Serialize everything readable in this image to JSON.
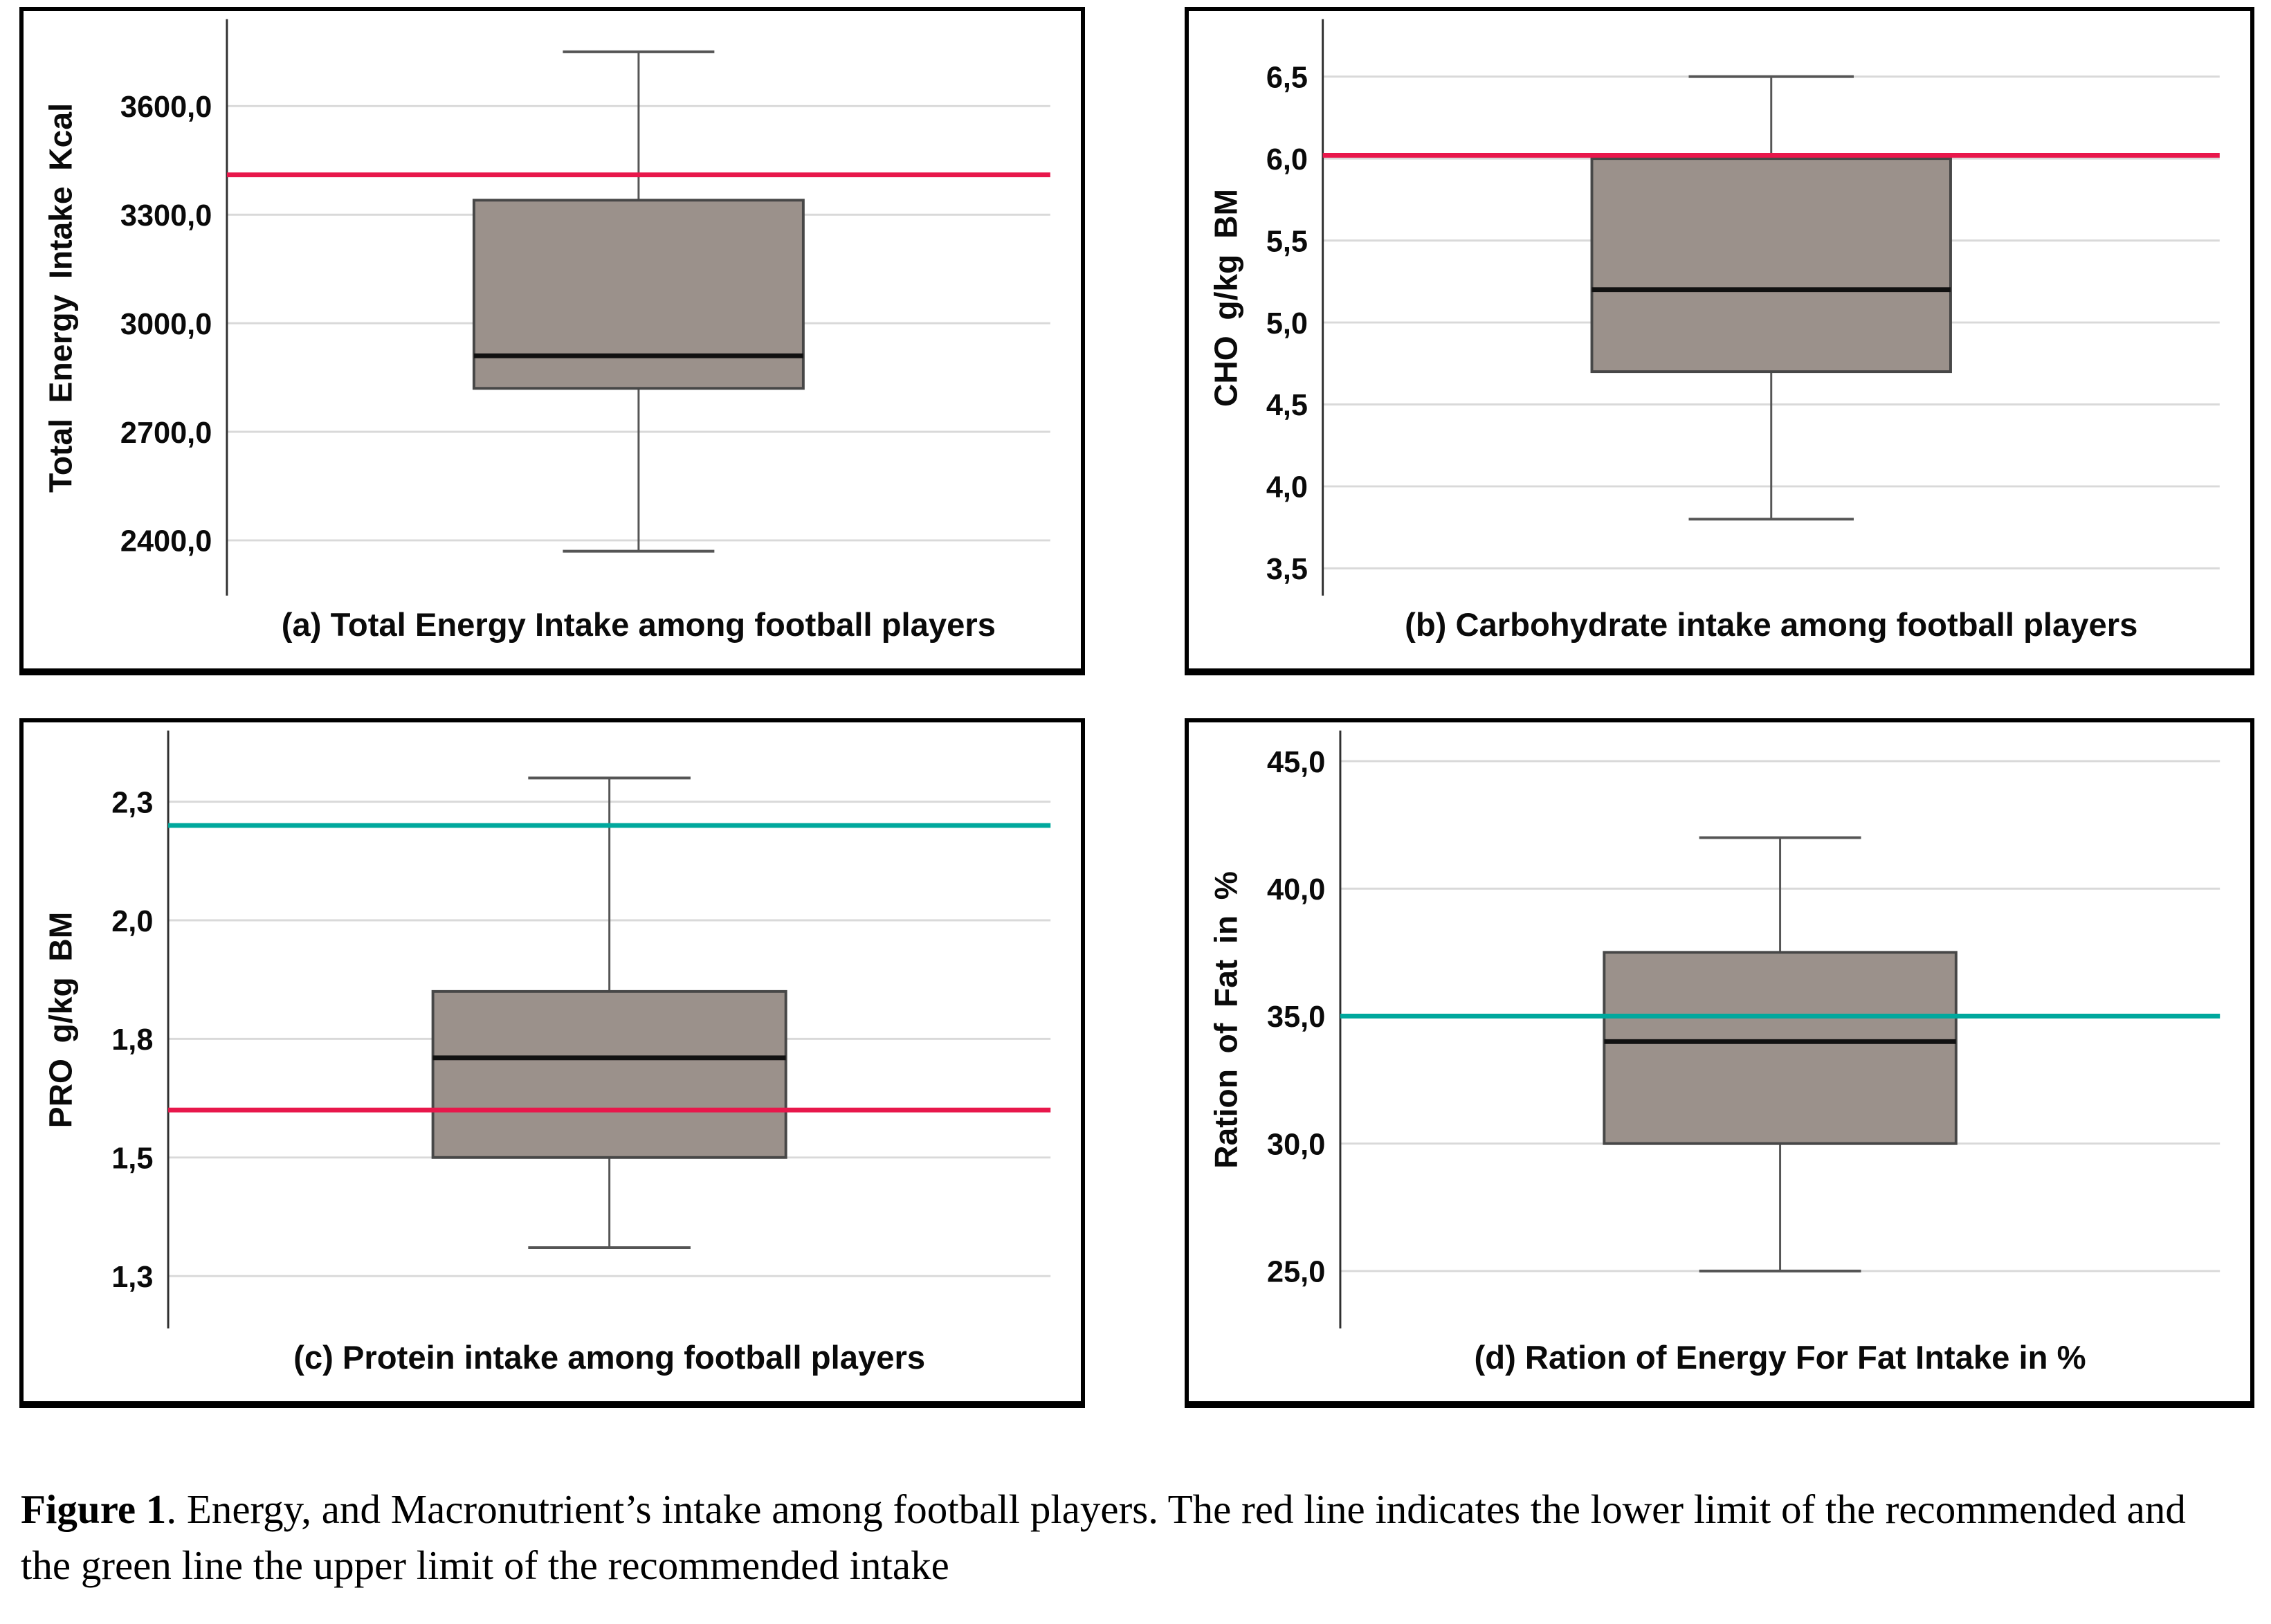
{
  "figure": {
    "caption_label": "Figure 1",
    "caption_text": ". Energy, and Macronutrient’s intake among football players. The red line indicates the lower limit of the recommended and the green line the upper limit of the recommended intake"
  },
  "colors": {
    "red_line": "#e8174b",
    "green_line": "#00a89d",
    "box_fill": "#9b918b",
    "box_border": "#474747",
    "median": "#111111",
    "whisker": "#555555",
    "gridline": "#d9d9d9",
    "axis": "#2f2f2f",
    "frame": "#000000"
  },
  "chart_data": [
    {
      "id": "a",
      "type": "boxplot",
      "title": "(a) Total Energy Intake among football players",
      "ylabel": "Total Energy Intake Kcal",
      "ylim": [
        2300,
        3840
      ],
      "grid": true,
      "yticks": [
        {
          "label": "3600,0",
          "value": 3600
        },
        {
          "label": "3300,0",
          "value": 3300
        },
        {
          "label": "3000,0",
          "value": 3000
        },
        {
          "label": "2700,0",
          "value": 2700
        },
        {
          "label": "2400,0",
          "value": 2400
        }
      ],
      "box": {
        "whisker_low": 2370,
        "q1": 2820,
        "median": 2910,
        "q3": 3340,
        "whisker_high": 3750
      },
      "reference_lines": [
        {
          "color": "red",
          "value": 3410
        }
      ]
    },
    {
      "id": "b",
      "type": "boxplot",
      "title": "(b) Carbohydrate intake among football players",
      "ylabel": "CHO g/kg BM",
      "ylim": [
        3.45,
        6.85
      ],
      "grid": true,
      "yticks": [
        {
          "label": "6,5",
          "value": 6.5
        },
        {
          "label": "6,0",
          "value": 6.0
        },
        {
          "label": "5,5",
          "value": 5.5
        },
        {
          "label": "5,0",
          "value": 5.0
        },
        {
          "label": "4,5",
          "value": 4.5
        },
        {
          "label": "4,0",
          "value": 4.0
        },
        {
          "label": "3,5",
          "value": 3.5
        }
      ],
      "box": {
        "whisker_low": 3.8,
        "q1": 4.7,
        "median": 5.2,
        "q3": 6.0,
        "whisker_high": 6.5
      },
      "reference_lines": [
        {
          "color": "red",
          "value": 6.02
        }
      ]
    },
    {
      "id": "c",
      "type": "boxplot",
      "title": "(c) Protein intake among football players",
      "ylabel": "PRO g/kg BM",
      "ylim": [
        1.18,
        2.4
      ],
      "grid": true,
      "yticks": [
        {
          "label": "2,3",
          "value": 2.25
        },
        {
          "label": "2,0",
          "value": 2.0
        },
        {
          "label": "1,8",
          "value": 1.75
        },
        {
          "label": "1,5",
          "value": 1.5
        },
        {
          "label": "1,3",
          "value": 1.25
        }
      ],
      "box": {
        "whisker_low": 1.31,
        "q1": 1.5,
        "median": 1.71,
        "q3": 1.85,
        "whisker_high": 2.3
      },
      "reference_lines": [
        {
          "color": "green",
          "value": 2.2
        },
        {
          "color": "red",
          "value": 1.6
        }
      ]
    },
    {
      "id": "d",
      "type": "boxplot",
      "title": "(d) Ration of Energy For Fat Intake in %",
      "ylabel": "Ration of Fat in %",
      "ylim": [
        23.5,
        46.2
      ],
      "grid": true,
      "yticks": [
        {
          "label": "45,0",
          "value": 45
        },
        {
          "label": "40,0",
          "value": 40
        },
        {
          "label": "35,0",
          "value": 35
        },
        {
          "label": "30,0",
          "value": 30
        },
        {
          "label": "25,0",
          "value": 25
        }
      ],
      "box": {
        "whisker_low": 25.0,
        "q1": 30.0,
        "median": 34.0,
        "q3": 37.5,
        "whisker_high": 42.0
      },
      "reference_lines": [
        {
          "color": "green",
          "value": 35.0
        }
      ]
    }
  ]
}
